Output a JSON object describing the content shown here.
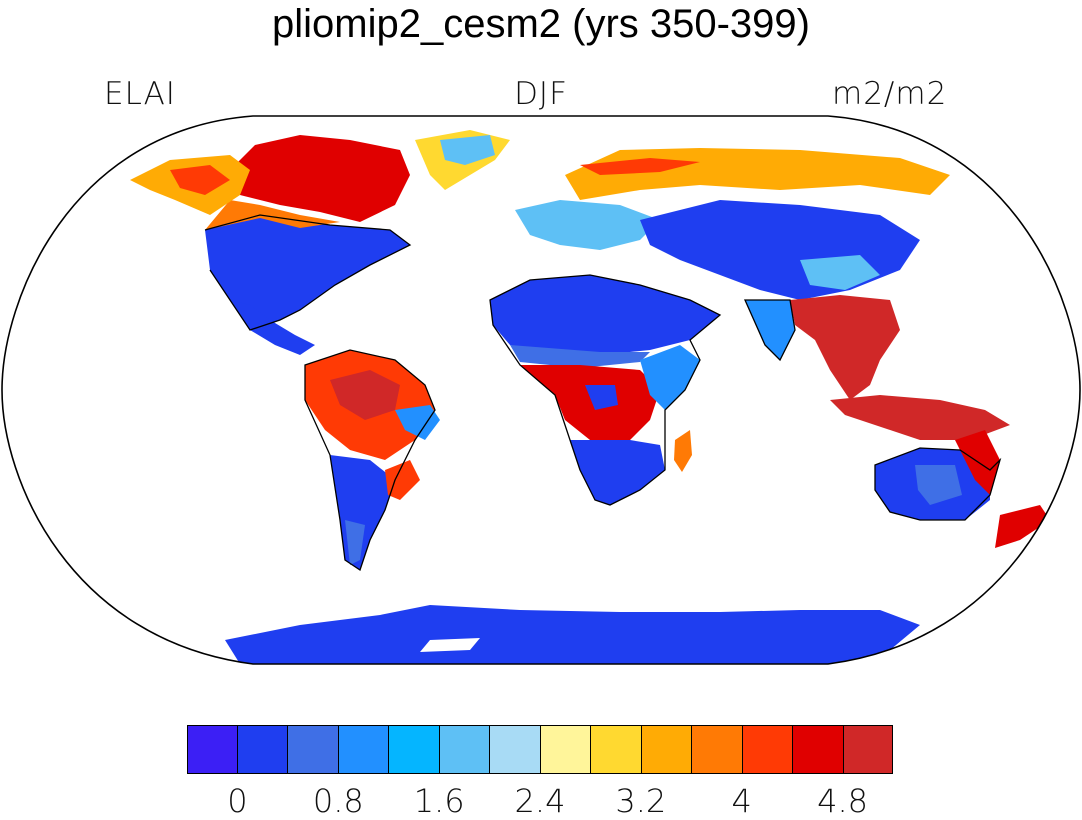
{
  "title": "pliomip2_cesm2 (yrs 350-399)",
  "labels": {
    "left": "ELAI",
    "center": "DJF",
    "right": "m2/m2"
  },
  "map": {
    "projection": "robinson",
    "field": "ELAI",
    "season": "DJF",
    "units": "m2/m2",
    "regions": [
      {
        "name": "canada-boreal",
        "value": 4.8
      },
      {
        "name": "alaska",
        "value": 3.6
      },
      {
        "name": "united-states",
        "value": 0.8
      },
      {
        "name": "greenland",
        "value": 3.2
      },
      {
        "name": "mexico",
        "value": 0.8
      },
      {
        "name": "amazon",
        "value": 4.4
      },
      {
        "name": "southern-south-america",
        "value": 0.8
      },
      {
        "name": "europe",
        "value": 1.6
      },
      {
        "name": "siberia-north",
        "value": 3.6
      },
      {
        "name": "central-asia",
        "value": 0.4
      },
      {
        "name": "sahara",
        "value": 0.4
      },
      {
        "name": "central-africa",
        "value": 4.8
      },
      {
        "name": "southern-africa",
        "value": 0.4
      },
      {
        "name": "madagascar",
        "value": 4.0
      },
      {
        "name": "southeast-asia",
        "value": 5.0
      },
      {
        "name": "maritime-continent",
        "value": 5.0
      },
      {
        "name": "australia-interior",
        "value": 0.8
      },
      {
        "name": "australia-east",
        "value": 4.8
      },
      {
        "name": "new-zealand",
        "value": 5.0
      },
      {
        "name": "antarctica",
        "value": 0.4
      }
    ]
  },
  "colorbar": {
    "colors": [
      "#3c1ff5",
      "#1f3ef0",
      "#3f6fe6",
      "#2290ff",
      "#05b5ff",
      "#5ec0f5",
      "#a8dbf5",
      "#fff59a",
      "#ffd930",
      "#ffab05",
      "#ff7a05",
      "#ff3a05",
      "#e00000",
      "#d02828"
    ],
    "tick_labels": [
      "0",
      "0.8",
      "1.6",
      "2.4",
      "3.2",
      "4",
      "4.8"
    ]
  }
}
